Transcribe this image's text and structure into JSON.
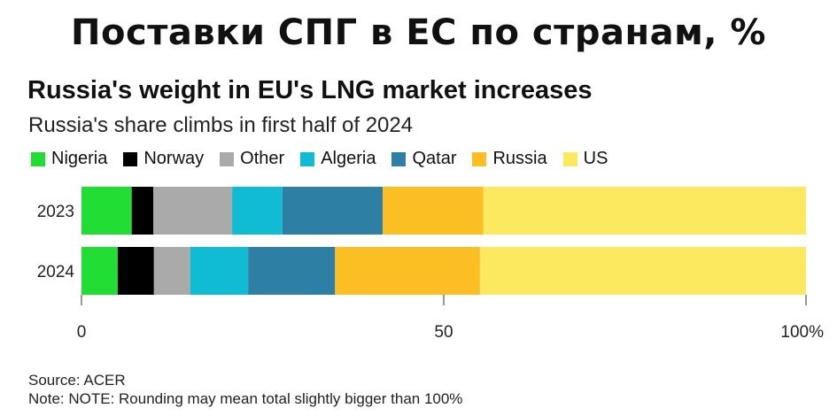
{
  "header": {
    "banner": "Поставки СПГ в ЕС по странам, %"
  },
  "chart_data": {
    "type": "bar",
    "orientation": "horizontal",
    "stacked": true,
    "title": "Russia's weight in EU's LNG market increases",
    "subtitle": "Russia's share climbs in first half of 2024",
    "categories": [
      "2023",
      "2024"
    ],
    "series": [
      {
        "name": "Nigeria",
        "color": "#22dd33",
        "values": [
          7,
          5
        ]
      },
      {
        "name": "Norway",
        "color": "#000000",
        "values": [
          3,
          5
        ]
      },
      {
        "name": "Other",
        "color": "#aaaaaa",
        "values": [
          11,
          5
        ]
      },
      {
        "name": "Algeria",
        "color": "#10bcd4",
        "values": [
          7,
          8
        ]
      },
      {
        "name": "Qatar",
        "color": "#2e7fa4",
        "values": [
          14,
          12
        ]
      },
      {
        "name": "Russia",
        "color": "#fbbf24",
        "values": [
          14,
          20
        ]
      },
      {
        "name": "US",
        "color": "#fde960",
        "values": [
          45,
          45
        ]
      }
    ],
    "xaxis": {
      "range": [
        0,
        100
      ],
      "ticks": [
        0,
        50,
        100
      ],
      "tick_labels": [
        "0",
        "50",
        "100%"
      ]
    },
    "legend_position": "top-left",
    "grid": false
  },
  "footer": {
    "source": "Source: ACER",
    "note": "Note: NOTE: Rounding may mean total slightly bigger than 100%"
  }
}
